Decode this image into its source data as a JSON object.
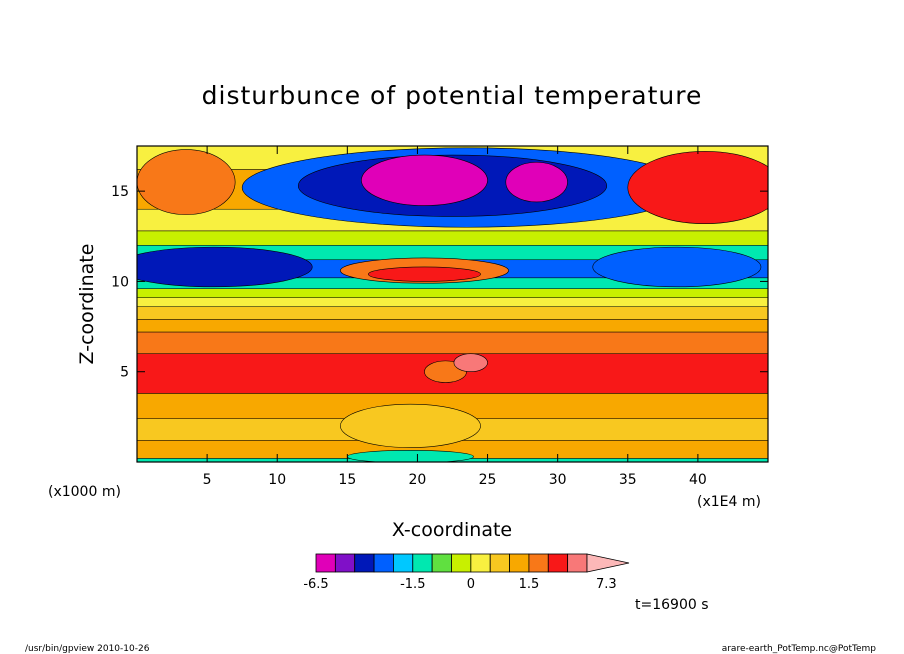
{
  "chart_data": {
    "type": "heatmap",
    "title": "disturbunce of potential temperature",
    "xlabel": "X-coordinate",
    "ylabel": "Z-coordinate",
    "x_unit": "(x1E4 m)",
    "y_unit": "(x1000 m)",
    "xlim": [
      0,
      45
    ],
    "ylim": [
      0,
      17.5
    ],
    "x_ticks": [
      5,
      10,
      15,
      20,
      25,
      30,
      35,
      40
    ],
    "y_ticks": [
      5,
      10,
      15
    ],
    "time_label": "t=16900 s",
    "colorbar": {
      "levels": [
        -6.5,
        -5,
        -4.5,
        -3.5,
        -2.5,
        -1.5,
        -1,
        -0.5,
        0,
        0.5,
        1,
        1.5,
        2.5,
        3.5,
        5.5,
        7.3
      ],
      "colors": [
        "#e000b8",
        "#8010c8",
        "#0018b8",
        "#0060ff",
        "#00c8ff",
        "#00e8b0",
        "#60e040",
        "#c8f000",
        "#f8f040",
        "#f8c820",
        "#f8a800",
        "#f87818",
        "#f81818",
        "#f87878",
        "#fcb8b8"
      ],
      "tick_labels": [
        "-6.5",
        "-1.5",
        "0",
        "1.5",
        "7.3"
      ],
      "tick_values": [
        -6.5,
        -1.5,
        0,
        1.5,
        7.3
      ]
    },
    "field_bands": [
      {
        "z": [
          0,
          0.2
        ],
        "value": -1.5
      },
      {
        "z": [
          0.2,
          1.2
        ],
        "value": 1.0
      },
      {
        "z": [
          1.2,
          2.4
        ],
        "value": 0.7
      },
      {
        "z": [
          2.4,
          3.8
        ],
        "value": 1.4
      },
      {
        "z": [
          3.8,
          6.0
        ],
        "value": 2.7
      },
      {
        "z": [
          6.0,
          7.2
        ],
        "value": 1.6
      },
      {
        "z": [
          7.2,
          7.9
        ],
        "value": 1.1
      },
      {
        "z": [
          7.9,
          8.6
        ],
        "value": 0.6
      },
      {
        "z": [
          8.6,
          9.1
        ],
        "value": 0.2
      },
      {
        "z": [
          9.1,
          9.6
        ],
        "value": -0.3
      },
      {
        "z": [
          9.6,
          10.2
        ],
        "value": -1.2
      },
      {
        "z": [
          10.2,
          11.2
        ],
        "value": -2.8
      },
      {
        "z": [
          11.2,
          12.0
        ],
        "value": -1.2
      },
      {
        "z": [
          12.0,
          12.8
        ],
        "value": -0.3
      },
      {
        "z": [
          12.8,
          14.0
        ],
        "value": 0.4
      },
      {
        "z": [
          14.0,
          16.2
        ],
        "value": 1.1
      },
      {
        "z": [
          16.2,
          17.5
        ],
        "value": 0.2
      }
    ],
    "field_features": [
      {
        "x": 23.5,
        "z": 15.2,
        "rx": 16,
        "rz": 2.2,
        "value": -3.2
      },
      {
        "x": 22.5,
        "z": 15.3,
        "rx": 11,
        "rz": 1.7,
        "value": -4.0
      },
      {
        "x": 20.5,
        "z": 15.6,
        "rx": 4.5,
        "rz": 1.4,
        "value": -5.5
      },
      {
        "x": 28.5,
        "z": 15.5,
        "rx": 2.2,
        "rz": 1.1,
        "value": -5.2
      },
      {
        "x": 40.5,
        "z": 15.2,
        "rx": 5.5,
        "rz": 2.0,
        "value": 2.7
      },
      {
        "x": 3.5,
        "z": 15.5,
        "rx": 3.5,
        "rz": 1.8,
        "value": 1.6
      },
      {
        "x": 5.5,
        "z": 10.8,
        "rx": 7,
        "rz": 1.1,
        "value": -4.0
      },
      {
        "x": 38.5,
        "z": 10.8,
        "rx": 6,
        "rz": 1.1,
        "value": -3.2
      },
      {
        "x": 20.5,
        "z": 10.6,
        "rx": 6,
        "rz": 0.7,
        "value": 1.6
      },
      {
        "x": 20.5,
        "z": 10.4,
        "rx": 4,
        "rz": 0.4,
        "value": 2.7
      },
      {
        "x": 19.5,
        "z": 2.0,
        "rx": 5,
        "rz": 1.2,
        "value": 0.6
      },
      {
        "x": 19.5,
        "z": 0.3,
        "rx": 4.5,
        "rz": 0.35,
        "value": -1.2
      },
      {
        "x": 22.0,
        "z": 5.0,
        "rx": 1.5,
        "rz": 0.6,
        "value": 1.6
      },
      {
        "x": 23.8,
        "z": 5.5,
        "rx": 1.2,
        "rz": 0.5,
        "value": 4.0
      }
    ]
  },
  "footer": {
    "left": "/usr/bin/gpview  2010-10-26",
    "right": "arare-earth_PotTemp.nc@PotTemp"
  }
}
